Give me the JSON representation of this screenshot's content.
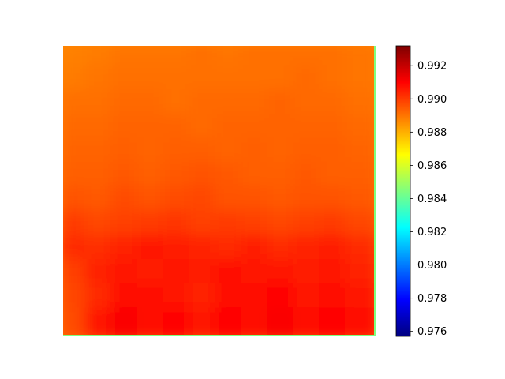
{
  "chart_data": {
    "type": "heatmap",
    "title": "",
    "xlabel": "",
    "ylabel": "",
    "axes_visible": false,
    "colormap": "jet",
    "colorbar": {
      "vmin": 0.9757,
      "vmax": 0.9932,
      "ticks": [
        0.976,
        0.978,
        0.98,
        0.982,
        0.984,
        0.986,
        0.988,
        0.99,
        0.992
      ],
      "tick_labels": [
        "0.976",
        "0.978",
        "0.980",
        "0.982",
        "0.984",
        "0.986",
        "0.988",
        "0.990",
        "0.992"
      ],
      "placement": "right"
    },
    "grid_rows": 12,
    "grid_cols": 12,
    "values": [
      [
        0.9888,
        0.9889,
        0.989,
        0.989,
        0.989,
        0.9891,
        0.989,
        0.9891,
        0.9891,
        0.9891,
        0.9891,
        0.989
      ],
      [
        0.9889,
        0.989,
        0.9891,
        0.9891,
        0.9891,
        0.9891,
        0.9891,
        0.9891,
        0.9891,
        0.9892,
        0.9891,
        0.989
      ],
      [
        0.9891,
        0.9891,
        0.9892,
        0.9892,
        0.9891,
        0.9892,
        0.9892,
        0.9892,
        0.9893,
        0.9892,
        0.9892,
        0.9891
      ],
      [
        0.9892,
        0.9892,
        0.9893,
        0.9893,
        0.9893,
        0.9892,
        0.9893,
        0.9893,
        0.9893,
        0.9893,
        0.9893,
        0.9892
      ],
      [
        0.9893,
        0.9893,
        0.9894,
        0.9893,
        0.9894,
        0.9894,
        0.9893,
        0.9894,
        0.9893,
        0.9894,
        0.9894,
        0.9893
      ],
      [
        0.9894,
        0.9894,
        0.9895,
        0.9894,
        0.9895,
        0.9896,
        0.9895,
        0.9894,
        0.9894,
        0.9895,
        0.9894,
        0.9894
      ],
      [
        0.9896,
        0.9895,
        0.9897,
        0.9896,
        0.9897,
        0.9898,
        0.9896,
        0.9896,
        0.9895,
        0.9896,
        0.9896,
        0.9895
      ],
      [
        0.99,
        0.9898,
        0.9899,
        0.99,
        0.9901,
        0.9899,
        0.99,
        0.9899,
        0.9898,
        0.9899,
        0.99,
        0.9898
      ],
      [
        0.9903,
        0.9902,
        0.9904,
        0.9906,
        0.9905,
        0.9904,
        0.9903,
        0.9905,
        0.9903,
        0.9904,
        0.9905,
        0.9903
      ],
      [
        0.9899,
        0.9904,
        0.9907,
        0.9905,
        0.9907,
        0.9905,
        0.9908,
        0.9906,
        0.9907,
        0.9905,
        0.9906,
        0.9904
      ],
      [
        0.9898,
        0.9903,
        0.9909,
        0.9908,
        0.9906,
        0.9904,
        0.9909,
        0.9908,
        0.991,
        0.9907,
        0.9908,
        0.9906
      ],
      [
        0.9897,
        0.9906,
        0.9911,
        0.9909,
        0.991,
        0.9906,
        0.991,
        0.9909,
        0.9911,
        0.9909,
        0.991,
        0.9908
      ]
    ],
    "colors": {
      "jet_stops": [
        "#00007f",
        "#0000ff",
        "#007fff",
        "#00ffff",
        "#7fff7f",
        "#ffff00",
        "#ff7f00",
        "#ff0000",
        "#7f0000"
      ]
    }
  }
}
